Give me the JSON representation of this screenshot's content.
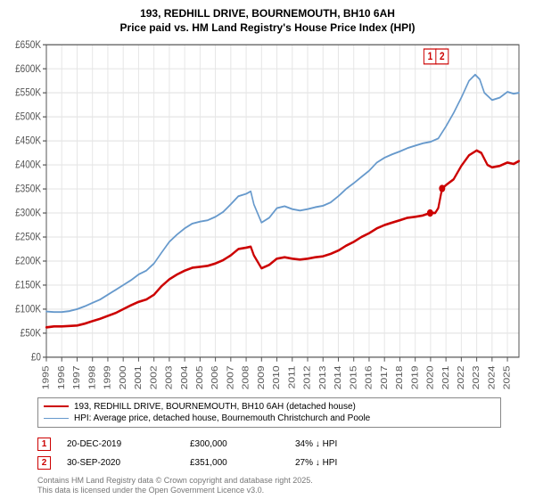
{
  "title_line1": "193, REDHILL DRIVE, BOURNEMOUTH, BH10 6AH",
  "title_line2": "Price paid vs. HM Land Registry's House Price Index (HPI)",
  "chart": {
    "type": "line",
    "background_color": "#ffffff",
    "grid_color": "#e6e6e6",
    "axis_color": "#555555",
    "x": {
      "min": 1995,
      "max": 2025.75,
      "ticks": [
        1995,
        1996,
        1997,
        1998,
        1999,
        2000,
        2001,
        2002,
        2003,
        2004,
        2005,
        2006,
        2007,
        2008,
        2009,
        2010,
        2011,
        2012,
        2013,
        2014,
        2015,
        2016,
        2017,
        2018,
        2019,
        2020,
        2021,
        2022,
        2023,
        2024,
        2025
      ],
      "tick_labels": [
        "1995",
        "1996",
        "1997",
        "1998",
        "1999",
        "2000",
        "2001",
        "2002",
        "2003",
        "2004",
        "2005",
        "2006",
        "2007",
        "2008",
        "2009",
        "2010",
        "2011",
        "2012",
        "2013",
        "2014",
        "2015",
        "2016",
        "2017",
        "2018",
        "2019",
        "2020",
        "2021",
        "2022",
        "2023",
        "2024",
        "2025"
      ],
      "label_fontsize": 10
    },
    "y": {
      "min": 0,
      "max": 650000,
      "ticks": [
        0,
        50000,
        100000,
        150000,
        200000,
        250000,
        300000,
        350000,
        400000,
        450000,
        500000,
        550000,
        600000,
        650000
      ],
      "tick_labels": [
        "£0",
        "£50K",
        "£100K",
        "£150K",
        "£200K",
        "£250K",
        "£300K",
        "£350K",
        "£400K",
        "£450K",
        "£500K",
        "£550K",
        "£600K",
        "£650K"
      ],
      "label_fontsize": 10
    },
    "series": [
      {
        "id": "price_paid",
        "color": "#cc0000",
        "line_width": 2.2,
        "data": [
          [
            1995.0,
            62000
          ],
          [
            1995.5,
            64000
          ],
          [
            1996.0,
            64000
          ],
          [
            1996.5,
            65000
          ],
          [
            1997.0,
            66000
          ],
          [
            1997.5,
            70000
          ],
          [
            1998.0,
            75000
          ],
          [
            1998.5,
            80000
          ],
          [
            1999.0,
            86000
          ],
          [
            1999.5,
            92000
          ],
          [
            2000.0,
            100000
          ],
          [
            2000.5,
            108000
          ],
          [
            2001.0,
            115000
          ],
          [
            2001.5,
            120000
          ],
          [
            2002.0,
            130000
          ],
          [
            2002.5,
            148000
          ],
          [
            2003.0,
            162000
          ],
          [
            2003.5,
            172000
          ],
          [
            2004.0,
            180000
          ],
          [
            2004.5,
            186000
          ],
          [
            2005.0,
            188000
          ],
          [
            2005.5,
            190000
          ],
          [
            2006.0,
            195000
          ],
          [
            2006.5,
            202000
          ],
          [
            2007.0,
            212000
          ],
          [
            2007.5,
            225000
          ],
          [
            2008.0,
            228000
          ],
          [
            2008.3,
            230000
          ],
          [
            2008.5,
            212000
          ],
          [
            2009.0,
            185000
          ],
          [
            2009.5,
            192000
          ],
          [
            2010.0,
            205000
          ],
          [
            2010.5,
            208000
          ],
          [
            2011.0,
            205000
          ],
          [
            2011.5,
            203000
          ],
          [
            2012.0,
            205000
          ],
          [
            2012.5,
            208000
          ],
          [
            2013.0,
            210000
          ],
          [
            2013.5,
            215000
          ],
          [
            2014.0,
            222000
          ],
          [
            2014.5,
            232000
          ],
          [
            2015.0,
            240000
          ],
          [
            2015.5,
            250000
          ],
          [
            2016.0,
            258000
          ],
          [
            2016.5,
            268000
          ],
          [
            2017.0,
            275000
          ],
          [
            2017.5,
            280000
          ],
          [
            2018.0,
            285000
          ],
          [
            2018.5,
            290000
          ],
          [
            2019.0,
            292000
          ],
          [
            2019.5,
            295000
          ],
          [
            2019.97,
            300000
          ],
          [
            2020.3,
            300000
          ],
          [
            2020.5,
            310000
          ],
          [
            2020.75,
            351000
          ],
          [
            2021.0,
            358000
          ],
          [
            2021.5,
            370000
          ],
          [
            2022.0,
            398000
          ],
          [
            2022.5,
            420000
          ],
          [
            2023.0,
            430000
          ],
          [
            2023.3,
            425000
          ],
          [
            2023.7,
            400000
          ],
          [
            2024.0,
            395000
          ],
          [
            2024.5,
            398000
          ],
          [
            2025.0,
            405000
          ],
          [
            2025.4,
            402000
          ],
          [
            2025.75,
            408000
          ]
        ]
      },
      {
        "id": "hpi",
        "color": "#6699cc",
        "line_width": 1.6,
        "data": [
          [
            1995.0,
            95000
          ],
          [
            1995.5,
            94000
          ],
          [
            1996.0,
            94000
          ],
          [
            1996.5,
            96000
          ],
          [
            1997.0,
            100000
          ],
          [
            1997.5,
            106000
          ],
          [
            1998.0,
            113000
          ],
          [
            1998.5,
            120000
          ],
          [
            1999.0,
            130000
          ],
          [
            1999.5,
            140000
          ],
          [
            2000.0,
            150000
          ],
          [
            2000.5,
            160000
          ],
          [
            2001.0,
            172000
          ],
          [
            2001.5,
            180000
          ],
          [
            2002.0,
            195000
          ],
          [
            2002.5,
            218000
          ],
          [
            2003.0,
            240000
          ],
          [
            2003.5,
            255000
          ],
          [
            2004.0,
            268000
          ],
          [
            2004.5,
            278000
          ],
          [
            2005.0,
            282000
          ],
          [
            2005.5,
            285000
          ],
          [
            2006.0,
            292000
          ],
          [
            2006.5,
            302000
          ],
          [
            2007.0,
            318000
          ],
          [
            2007.5,
            335000
          ],
          [
            2008.0,
            340000
          ],
          [
            2008.3,
            345000
          ],
          [
            2008.5,
            318000
          ],
          [
            2009.0,
            280000
          ],
          [
            2009.5,
            290000
          ],
          [
            2010.0,
            310000
          ],
          [
            2010.5,
            314000
          ],
          [
            2011.0,
            308000
          ],
          [
            2011.5,
            305000
          ],
          [
            2012.0,
            308000
          ],
          [
            2012.5,
            312000
          ],
          [
            2013.0,
            315000
          ],
          [
            2013.5,
            322000
          ],
          [
            2014.0,
            335000
          ],
          [
            2014.5,
            350000
          ],
          [
            2015.0,
            362000
          ],
          [
            2015.5,
            375000
          ],
          [
            2016.0,
            388000
          ],
          [
            2016.5,
            405000
          ],
          [
            2017.0,
            415000
          ],
          [
            2017.5,
            422000
          ],
          [
            2018.0,
            428000
          ],
          [
            2018.5,
            435000
          ],
          [
            2019.0,
            440000
          ],
          [
            2019.5,
            445000
          ],
          [
            2020.0,
            448000
          ],
          [
            2020.5,
            455000
          ],
          [
            2021.0,
            480000
          ],
          [
            2021.5,
            508000
          ],
          [
            2022.0,
            540000
          ],
          [
            2022.5,
            575000
          ],
          [
            2022.9,
            588000
          ],
          [
            2023.2,
            578000
          ],
          [
            2023.5,
            550000
          ],
          [
            2024.0,
            535000
          ],
          [
            2024.5,
            540000
          ],
          [
            2025.0,
            552000
          ],
          [
            2025.4,
            548000
          ],
          [
            2025.75,
            550000
          ]
        ]
      }
    ],
    "markers": [
      {
        "n": "1",
        "x": 2019.97,
        "y": 300000,
        "color": "#cc0000"
      },
      {
        "n": "2",
        "x": 2020.75,
        "y": 351000,
        "color": "#cc0000"
      }
    ]
  },
  "legend": [
    {
      "color": "#cc0000",
      "width": 2.5,
      "label": "193, REDHILL DRIVE, BOURNEMOUTH, BH10 6AH (detached house)"
    },
    {
      "color": "#6699cc",
      "width": 1.5,
      "label": "HPI: Average price, detached house, Bournemouth Christchurch and Poole"
    }
  ],
  "marker_rows": [
    {
      "n": "1",
      "color": "#cc0000",
      "date": "20-DEC-2019",
      "price": "£300,000",
      "delta": "34% ↓ HPI"
    },
    {
      "n": "2",
      "color": "#cc0000",
      "date": "30-SEP-2020",
      "price": "£351,000",
      "delta": "27% ↓ HPI"
    }
  ],
  "footer_line1": "Contains HM Land Registry data © Crown copyright and database right 2025.",
  "footer_line2": "This data is licensed under the Open Government Licence v3.0."
}
